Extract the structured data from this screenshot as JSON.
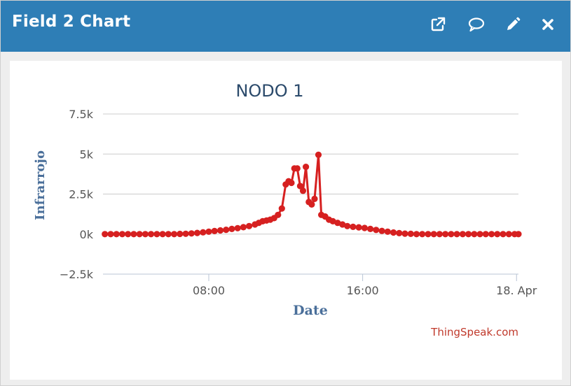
{
  "window": {
    "title": "Field 2 Chart",
    "actions": [
      {
        "icon": "external-link-icon"
      },
      {
        "icon": "comment-icon"
      },
      {
        "icon": "pencil-icon"
      },
      {
        "icon": "close-icon"
      }
    ]
  },
  "credit": "ThingSpeak.com",
  "colors": {
    "header": "#2e7eb6",
    "series": "#d62020",
    "title": "#2b4a6b",
    "axis_label": "#4a6f9a",
    "credit": "#c0392b"
  },
  "chart_data": {
    "type": "line",
    "title": "NODO 1",
    "xlabel": "Date",
    "ylabel": "Infrarrojo",
    "x_unit": "hours since Apr 17 00:00",
    "xlim": [
      2.5,
      24.1
    ],
    "ylim": [
      -2500,
      7500
    ],
    "yticks": [
      {
        "value": -2500,
        "label": "−2.5k"
      },
      {
        "value": 0,
        "label": "0k"
      },
      {
        "value": 2500,
        "label": "2.5k"
      },
      {
        "value": 5000,
        "label": "5k"
      },
      {
        "value": 7500,
        "label": "7.5k"
      }
    ],
    "xticks": [
      {
        "value": 8,
        "label": "08:00"
      },
      {
        "value": 16,
        "label": "16:00"
      },
      {
        "value": 24,
        "label": "18. Apr"
      }
    ],
    "grid": true,
    "legend": "none",
    "series": [
      {
        "color": "#d62020",
        "points": [
          [
            2.6,
            0
          ],
          [
            2.9,
            0
          ],
          [
            3.2,
            0
          ],
          [
            3.5,
            0
          ],
          [
            3.8,
            0
          ],
          [
            4.1,
            0
          ],
          [
            4.4,
            0
          ],
          [
            4.7,
            0
          ],
          [
            5.0,
            0
          ],
          [
            5.3,
            0
          ],
          [
            5.6,
            0
          ],
          [
            5.9,
            0
          ],
          [
            6.2,
            0
          ],
          [
            6.5,
            10
          ],
          [
            6.8,
            20
          ],
          [
            7.1,
            40
          ],
          [
            7.4,
            70
          ],
          [
            7.7,
            110
          ],
          [
            8.0,
            150
          ],
          [
            8.3,
            190
          ],
          [
            8.6,
            230
          ],
          [
            8.9,
            270
          ],
          [
            9.2,
            320
          ],
          [
            9.5,
            370
          ],
          [
            9.8,
            430
          ],
          [
            10.1,
            500
          ],
          [
            10.4,
            600
          ],
          [
            10.6,
            700
          ],
          [
            10.8,
            800
          ],
          [
            11.0,
            850
          ],
          [
            11.2,
            900
          ],
          [
            11.4,
            1000
          ],
          [
            11.6,
            1200
          ],
          [
            11.8,
            1600
          ],
          [
            12.0,
            3100
          ],
          [
            12.15,
            3300
          ],
          [
            12.3,
            3200
          ],
          [
            12.45,
            4100
          ],
          [
            12.6,
            4100
          ],
          [
            12.75,
            3000
          ],
          [
            12.9,
            2700
          ],
          [
            13.05,
            4200
          ],
          [
            13.2,
            2000
          ],
          [
            13.35,
            1850
          ],
          [
            13.5,
            2200
          ],
          [
            13.7,
            4950
          ],
          [
            13.85,
            1200
          ],
          [
            14.05,
            1100
          ],
          [
            14.25,
            900
          ],
          [
            14.45,
            800
          ],
          [
            14.7,
            700
          ],
          [
            14.95,
            600
          ],
          [
            15.2,
            500
          ],
          [
            15.5,
            450
          ],
          [
            15.8,
            420
          ],
          [
            16.1,
            380
          ],
          [
            16.4,
            320
          ],
          [
            16.7,
            260
          ],
          [
            17.0,
            200
          ],
          [
            17.3,
            150
          ],
          [
            17.6,
            100
          ],
          [
            17.9,
            60
          ],
          [
            18.2,
            30
          ],
          [
            18.5,
            15
          ],
          [
            18.8,
            0
          ],
          [
            19.1,
            0
          ],
          [
            19.4,
            0
          ],
          [
            19.7,
            0
          ],
          [
            20.0,
            0
          ],
          [
            20.3,
            0
          ],
          [
            20.6,
            0
          ],
          [
            20.9,
            0
          ],
          [
            21.2,
            0
          ],
          [
            21.5,
            0
          ],
          [
            21.8,
            0
          ],
          [
            22.1,
            0
          ],
          [
            22.4,
            0
          ],
          [
            22.7,
            0
          ],
          [
            23.0,
            0
          ],
          [
            23.3,
            0
          ],
          [
            23.6,
            0
          ],
          [
            23.9,
            0
          ],
          [
            24.1,
            0
          ]
        ]
      }
    ]
  }
}
